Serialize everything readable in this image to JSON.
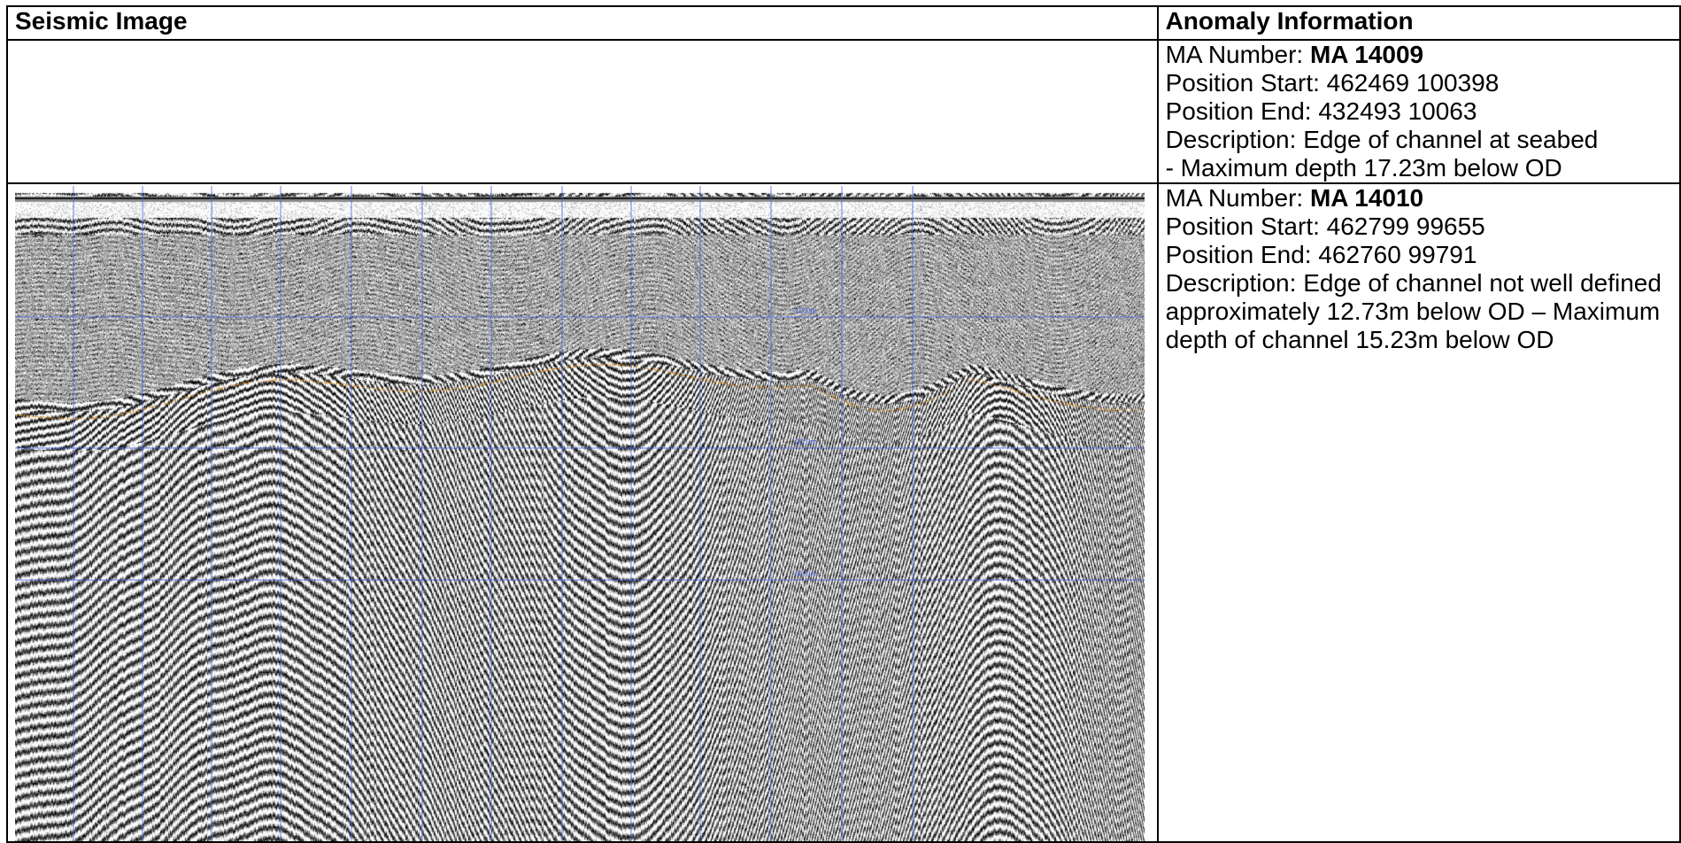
{
  "headers": {
    "col1": "Seismic Image",
    "col2": "Anomaly Information"
  },
  "anomalies": [
    {
      "ma_label": "MA Number: ",
      "ma_value": "MA 14009",
      "lines": [
        "Position Start: 462469 100398",
        "Position End: 432493 10063",
        "Description: Edge of channel at seabed",
        "- Maximum depth 17.23m below OD"
      ]
    },
    {
      "ma_label": "MA Number: ",
      "ma_value": "MA 14010",
      "lines": [
        "Position Start: 462799 99655",
        "Position End: 462760 99791"
      ],
      "description": "Description: Edge of channel not well defined approximately 12.73m below OD – Maximum depth of channel 15.23m below OD"
    }
  ],
  "seismic": {
    "depth_labels": [
      "-10.0m",
      "-20.0m",
      "-30.0m"
    ],
    "grid_color": "#4a63e6",
    "label_color": "#4a63e6"
  }
}
